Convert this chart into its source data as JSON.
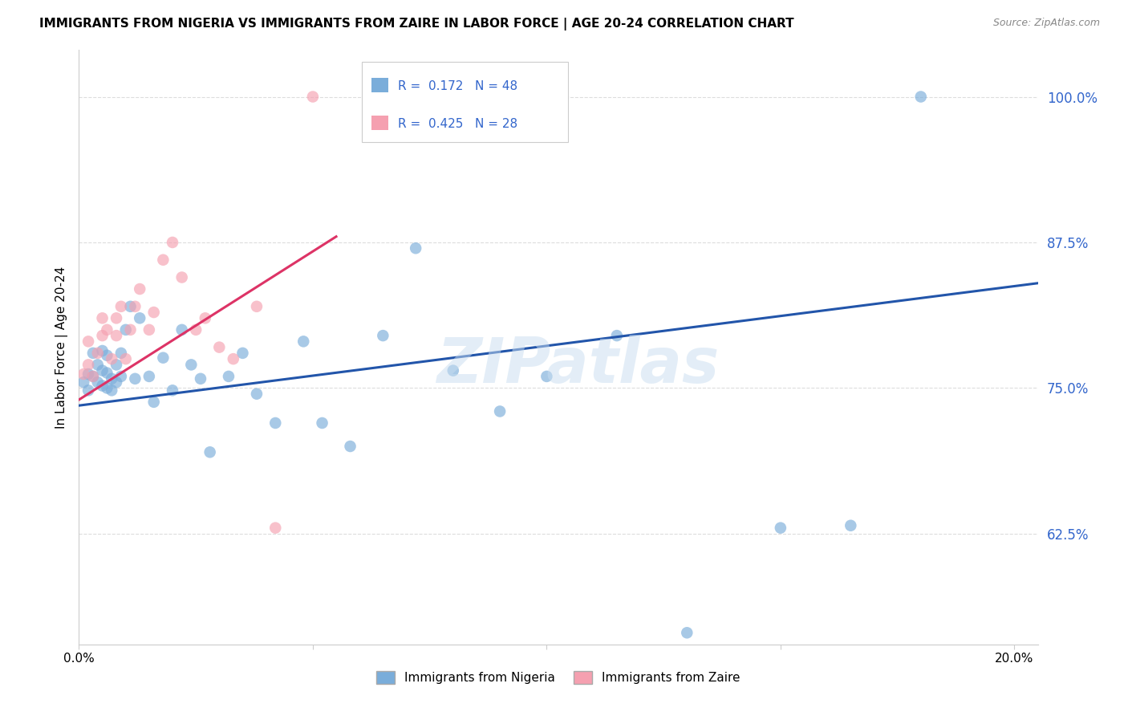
{
  "title": "IMMIGRANTS FROM NIGERIA VS IMMIGRANTS FROM ZAIRE IN LABOR FORCE | AGE 20-24 CORRELATION CHART",
  "source": "Source: ZipAtlas.com",
  "xlabel_nigeria": "Immigrants from Nigeria",
  "xlabel_zaire": "Immigrants from Zaire",
  "ylabel": "In Labor Force | Age 20-24",
  "r_nigeria": 0.172,
  "n_nigeria": 48,
  "r_zaire": 0.425,
  "n_zaire": 28,
  "xlim": [
    0.0,
    0.205
  ],
  "ylim": [
    0.53,
    1.04
  ],
  "yticks": [
    0.625,
    0.75,
    0.875,
    1.0
  ],
  "ytick_labels": [
    "62.5%",
    "75.0%",
    "87.5%",
    "100.0%"
  ],
  "xticks": [
    0.0,
    0.05,
    0.1,
    0.15,
    0.2
  ],
  "xtick_labels": [
    "0.0%",
    "",
    "",
    "",
    "20.0%"
  ],
  "color_nigeria": "#7aadda",
  "color_zaire": "#f5a0b0",
  "line_color_nigeria": "#2255aa",
  "line_color_zaire": "#dd3366",
  "watermark": "ZIPatlas",
  "nigeria_x": [
    0.001,
    0.002,
    0.002,
    0.003,
    0.003,
    0.004,
    0.004,
    0.005,
    0.005,
    0.005,
    0.006,
    0.006,
    0.006,
    0.007,
    0.007,
    0.008,
    0.008,
    0.009,
    0.009,
    0.01,
    0.011,
    0.012,
    0.013,
    0.015,
    0.016,
    0.018,
    0.02,
    0.022,
    0.024,
    0.026,
    0.028,
    0.032,
    0.035,
    0.038,
    0.042,
    0.048,
    0.052,
    0.058,
    0.065,
    0.072,
    0.08,
    0.09,
    0.1,
    0.115,
    0.13,
    0.15,
    0.165,
    0.18
  ],
  "nigeria_y": [
    0.755,
    0.762,
    0.748,
    0.76,
    0.78,
    0.755,
    0.77,
    0.752,
    0.765,
    0.782,
    0.75,
    0.763,
    0.778,
    0.748,
    0.758,
    0.77,
    0.755,
    0.78,
    0.76,
    0.8,
    0.82,
    0.758,
    0.81,
    0.76,
    0.738,
    0.776,
    0.748,
    0.8,
    0.77,
    0.758,
    0.695,
    0.76,
    0.78,
    0.745,
    0.72,
    0.79,
    0.72,
    0.7,
    0.795,
    0.87,
    0.765,
    0.73,
    0.76,
    0.795,
    0.54,
    0.63,
    0.632,
    1.0
  ],
  "zaire_x": [
    0.001,
    0.002,
    0.002,
    0.003,
    0.004,
    0.005,
    0.005,
    0.006,
    0.007,
    0.008,
    0.008,
    0.009,
    0.01,
    0.011,
    0.012,
    0.013,
    0.015,
    0.016,
    0.018,
    0.02,
    0.022,
    0.025,
    0.027,
    0.03,
    0.033,
    0.038,
    0.042,
    0.05
  ],
  "zaire_y": [
    0.762,
    0.77,
    0.79,
    0.76,
    0.78,
    0.795,
    0.81,
    0.8,
    0.775,
    0.795,
    0.81,
    0.82,
    0.775,
    0.8,
    0.82,
    0.835,
    0.8,
    0.815,
    0.86,
    0.875,
    0.845,
    0.8,
    0.81,
    0.785,
    0.775,
    0.82,
    0.63,
    1.0
  ],
  "nig_line_x0": 0.0,
  "nig_line_x1": 0.205,
  "nig_line_y0": 0.735,
  "nig_line_y1": 0.84,
  "zai_line_x0": 0.0,
  "zai_line_x1": 0.055,
  "zai_line_y0": 0.74,
  "zai_line_y1": 0.88
}
